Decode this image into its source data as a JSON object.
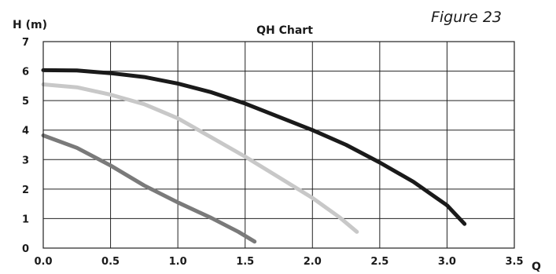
{
  "figure_label": "Figure 23",
  "chart_data": {
    "type": "line",
    "title": "QH Chart",
    "xlabel": "Q",
    "ylabel": "H (m)",
    "xlim": [
      0,
      3.5
    ],
    "ylim": [
      0,
      7
    ],
    "x_ticks": [
      "0.0",
      "0.5",
      "1.0",
      "1.5",
      "2.0",
      "2.5",
      "3.0",
      "3.5"
    ],
    "y_ticks": [
      "0",
      "1",
      "2",
      "3",
      "4",
      "5",
      "6",
      "7"
    ],
    "grid": true,
    "legend": "none",
    "series": [
      {
        "color": "#1a1a1a",
        "points": [
          [
            0.0,
            6.03
          ],
          [
            0.25,
            6.02
          ],
          [
            0.5,
            5.93
          ],
          [
            0.75,
            5.8
          ],
          [
            1.0,
            5.58
          ],
          [
            1.25,
            5.28
          ],
          [
            1.5,
            4.9
          ],
          [
            1.75,
            4.45
          ],
          [
            2.0,
            4.0
          ],
          [
            2.25,
            3.5
          ],
          [
            2.5,
            2.9
          ],
          [
            2.75,
            2.25
          ],
          [
            3.0,
            1.45
          ],
          [
            3.13,
            0.82
          ]
        ]
      },
      {
        "color": "#c8c8c8",
        "points": [
          [
            0.0,
            5.55
          ],
          [
            0.25,
            5.45
          ],
          [
            0.5,
            5.2
          ],
          [
            0.75,
            4.88
          ],
          [
            1.0,
            4.4
          ],
          [
            1.25,
            3.75
          ],
          [
            1.5,
            3.1
          ],
          [
            1.75,
            2.4
          ],
          [
            2.0,
            1.7
          ],
          [
            2.2,
            1.05
          ],
          [
            2.33,
            0.55
          ]
        ]
      },
      {
        "color": "#7a7a7a",
        "points": [
          [
            0.0,
            3.82
          ],
          [
            0.25,
            3.4
          ],
          [
            0.5,
            2.8
          ],
          [
            0.75,
            2.12
          ],
          [
            1.0,
            1.55
          ],
          [
            1.25,
            1.02
          ],
          [
            1.45,
            0.55
          ],
          [
            1.57,
            0.22
          ]
        ]
      }
    ]
  }
}
